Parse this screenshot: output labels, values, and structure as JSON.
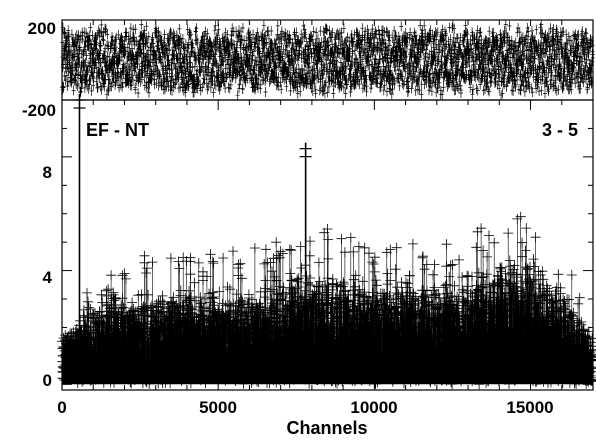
{
  "chart_data": [
    {
      "type": "scatter",
      "panel": "residuals",
      "title": "",
      "xlabel": "",
      "ylabel": "",
      "xlim": [
        0,
        17000
      ],
      "ylim": [
        -200,
        200
      ],
      "yticks": [
        {
          "value": 200,
          "label": "200"
        },
        {
          "value": -200,
          "label": "-200"
        }
      ],
      "marker": "plus",
      "color": "#000000",
      "noise_band": [
        -180,
        180
      ]
    },
    {
      "type": "scatter",
      "panel": "main",
      "title": "",
      "xlabel": "Channels",
      "ylabel": "",
      "xlim": [
        0,
        17000
      ],
      "ylim": [
        -0.2,
        10
      ],
      "xticks": [
        {
          "value": 0,
          "label": "0"
        },
        {
          "value": 5000,
          "label": "5000"
        },
        {
          "value": 10000,
          "label": "10000"
        },
        {
          "value": 15000,
          "label": "15000"
        }
      ],
      "yticks": [
        {
          "value": 0,
          "label": "0"
        },
        {
          "value": 4,
          "label": "4"
        },
        {
          "value": 8,
          "label": "8"
        }
      ],
      "annotations": {
        "left": "EF - NT",
        "right": "3 - 5"
      },
      "marker": "plus",
      "color": "#000000",
      "spikes": [
        {
          "x": 560,
          "y": 10.3
        },
        {
          "x": 7800,
          "y": 8.5
        }
      ],
      "envelope": [
        {
          "x": 0,
          "y": 1.6
        },
        {
          "x": 1000,
          "y": 2.6
        },
        {
          "x": 2000,
          "y": 3.0
        },
        {
          "x": 3000,
          "y": 3.1
        },
        {
          "x": 4000,
          "y": 3.0
        },
        {
          "x": 5000,
          "y": 3.1
        },
        {
          "x": 6000,
          "y": 3.2
        },
        {
          "x": 7000,
          "y": 3.4
        },
        {
          "x": 8000,
          "y": 3.7
        },
        {
          "x": 9000,
          "y": 3.6
        },
        {
          "x": 10000,
          "y": 3.3
        },
        {
          "x": 11000,
          "y": 3.4
        },
        {
          "x": 12000,
          "y": 3.3
        },
        {
          "x": 13000,
          "y": 3.5
        },
        {
          "x": 14000,
          "y": 3.9
        },
        {
          "x": 15000,
          "y": 4.0
        },
        {
          "x": 16000,
          "y": 3.2
        },
        {
          "x": 17000,
          "y": 1.5
        }
      ]
    }
  ]
}
